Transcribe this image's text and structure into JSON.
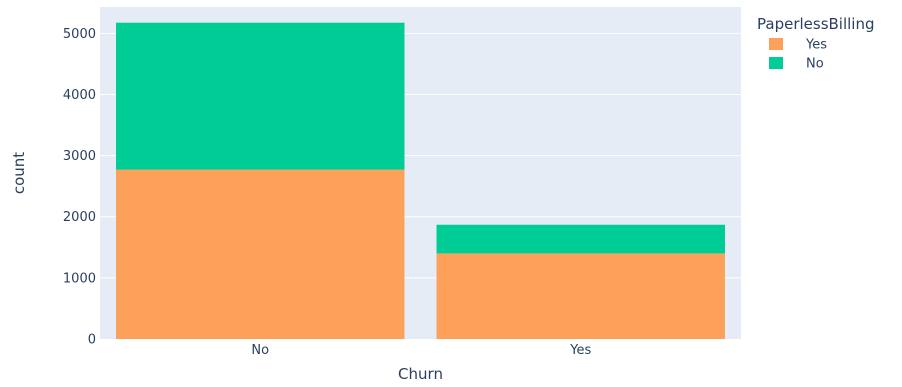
{
  "chart_data": {
    "type": "bar",
    "barmode": "stack",
    "categories": [
      "No",
      "Yes"
    ],
    "series": [
      {
        "name": "Yes",
        "values": [
          2771,
          1400
        ],
        "color": "#fda05a"
      },
      {
        "name": "No",
        "values": [
          2403,
          469
        ],
        "color": "#00cc96"
      }
    ],
    "xlabel": "Churn",
    "ylabel": "count",
    "ylim": [
      0,
      5431
    ],
    "yticks": [
      0,
      1000,
      2000,
      3000,
      4000,
      5000
    ],
    "ytick_labels": [
      "0",
      "1000",
      "2000",
      "3000",
      "4000",
      "5000"
    ],
    "grid": true,
    "legend": {
      "title": "PaperlessBilling",
      "position": "top-right"
    },
    "colors": {
      "plot_background": "#e5ecf6",
      "gridline": "#ffffff",
      "text": "#2a3f5f"
    }
  }
}
